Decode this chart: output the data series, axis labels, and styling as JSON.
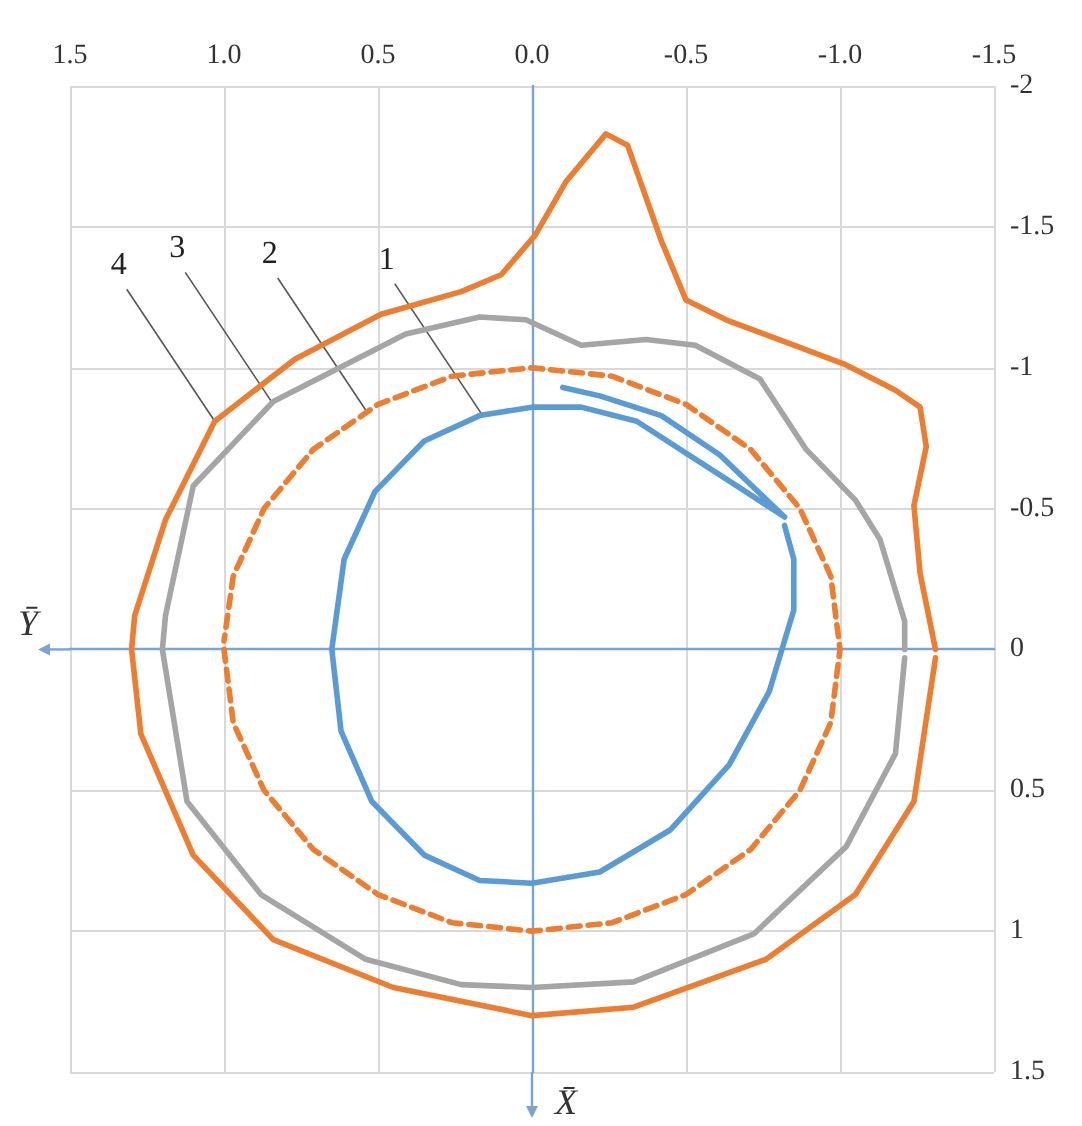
{
  "chart_data": {
    "type": "line",
    "xlabel": "X̄",
    "ylabel": "Ȳ",
    "xlim": [
      1.5,
      -1.5
    ],
    "xticks": [
      {
        "value": 1.5,
        "label": "1.5"
      },
      {
        "value": 1,
        "label": "1.0"
      },
      {
        "value": 0.5,
        "label": "0.5"
      },
      {
        "value": 0,
        "label": "0.0"
      },
      {
        "value": -0.5,
        "label": "-0.5"
      },
      {
        "value": -1,
        "label": "-1.0"
      },
      {
        "value": -1.5,
        "label": "-1.5"
      }
    ],
    "ylim": [
      1.5,
      -2
    ],
    "yticks": [
      -2,
      -1.5,
      -1,
      -0.5,
      0,
      0.5,
      1,
      1.5
    ],
    "grid": true,
    "marker": "none",
    "annotations": [
      {
        "text": "1",
        "x": 0.16,
        "y": -0.83
      },
      {
        "text": "2",
        "x": 0.54,
        "y": -0.85
      },
      {
        "text": "3",
        "x": 0.84,
        "y": -0.87
      },
      {
        "text": "4",
        "x": 1.03,
        "y": -0.81
      }
    ],
    "series": [
      {
        "color": "#5b9bd5",
        "line_style": "solid",
        "x": [
          -0.1,
          -0.22,
          -0.42,
          -0.61,
          -0.82,
          -0.68,
          -0.51,
          -0.34,
          -0.16,
          0.0,
          0.17,
          0.35,
          0.51,
          0.61,
          0.65,
          0.62,
          0.52,
          0.35,
          0.17,
          0.0,
          -0.22,
          -0.45,
          -0.64,
          -0.77,
          -0.85,
          -0.85,
          -0.82
        ],
        "values": [
          -0.93,
          -0.9,
          -0.83,
          -0.69,
          -0.47,
          -0.57,
          -0.69,
          -0.81,
          -0.86,
          -0.86,
          -0.83,
          -0.74,
          -0.56,
          -0.32,
          0.0,
          0.29,
          0.54,
          0.73,
          0.82,
          0.83,
          0.79,
          0.64,
          0.41,
          0.15,
          -0.14,
          -0.32,
          -0.44
        ]
      },
      {
        "color": "#ed7d31",
        "line_style": "dashed",
        "x": [
          1,
          0.97,
          0.87,
          0.71,
          0.5,
          0.26,
          0,
          -0.26,
          -0.5,
          -0.71,
          -0.87,
          -0.97,
          -1,
          -0.97,
          -0.87,
          -0.71,
          -0.5,
          -0.26,
          0,
          0.26,
          0.5,
          0.71,
          0.87,
          0.97,
          1
        ],
        "values": [
          0,
          0.26,
          0.5,
          0.71,
          0.87,
          0.97,
          1,
          0.97,
          0.87,
          0.71,
          0.5,
          0.26,
          0,
          -0.26,
          -0.5,
          -0.71,
          -0.87,
          -0.97,
          -1,
          -0.97,
          -0.87,
          -0.71,
          -0.5,
          -0.26,
          -0.03
        ]
      },
      {
        "color": "#a5a5a5",
        "line_style": "solid",
        "x": [
          -1.21,
          -1.21,
          -1.13,
          -1.05,
          -0.89,
          -0.74,
          -0.53,
          -0.37,
          -0.16,
          0.02,
          0.17,
          0.41,
          0.84,
          1.1,
          1.19,
          1.2,
          1.12,
          0.88,
          0.54,
          0.23,
          0.0,
          -0.33,
          -0.72,
          -1.02,
          -1.18,
          -1.21
        ],
        "values": [
          0.0,
          -0.1,
          -0.39,
          -0.53,
          -0.71,
          -0.96,
          -1.08,
          -1.1,
          -1.08,
          -1.17,
          -1.18,
          -1.12,
          -0.88,
          -0.58,
          -0.12,
          0.0,
          0.54,
          0.87,
          1.1,
          1.19,
          1.2,
          1.18,
          1.01,
          0.7,
          0.37,
          0.03
        ]
      },
      {
        "color": "#ed7d31",
        "line_style": "solid",
        "x": [
          -1.31,
          -1.26,
          -1.24,
          -1.28,
          -1.26,
          -1.18,
          -1.02,
          -0.85,
          -0.63,
          -0.5,
          -0.42,
          -0.31,
          -0.24,
          -0.11,
          -0.01,
          0.1,
          0.23,
          0.49,
          0.77,
          1.03,
          1.19,
          1.29,
          1.3,
          1.27,
          1.1,
          0.84,
          0.45,
          0.0,
          -0.33,
          -0.76,
          -1.05,
          -1.24,
          -1.31
        ],
        "values": [
          0.0,
          -0.27,
          -0.51,
          -0.72,
          -0.86,
          -0.92,
          -1.01,
          -1.08,
          -1.17,
          -1.24,
          -1.45,
          -1.79,
          -1.83,
          -1.66,
          -1.47,
          -1.33,
          -1.27,
          -1.19,
          -1.03,
          -0.81,
          -0.46,
          -0.12,
          0.0,
          0.3,
          0.73,
          1.03,
          1.2,
          1.3,
          1.27,
          1.1,
          0.87,
          0.54,
          0.03
        ]
      }
    ]
  }
}
